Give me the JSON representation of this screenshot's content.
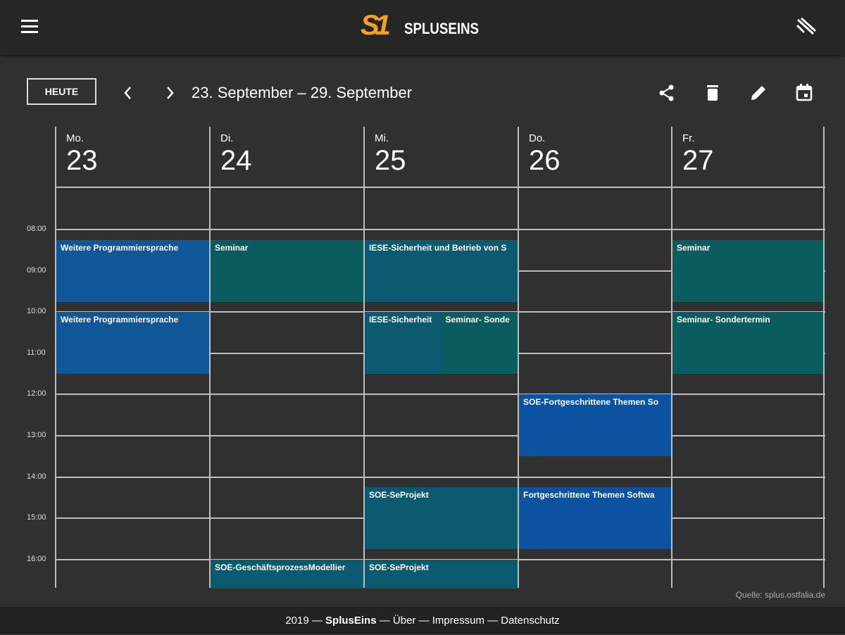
{
  "header": {
    "logo": "S1",
    "brand": "SPLUSEINS"
  },
  "toolbar": {
    "today_button": "HEUTE",
    "date_range": "23. September – 29. September"
  },
  "time_labels": [
    "08:00",
    "09:00",
    "10:00",
    "11:00",
    "12:00",
    "13:00",
    "14:00",
    "15:00",
    "16:00"
  ],
  "days": [
    {
      "weekday": "Mo.",
      "date": 23,
      "events": [
        {
          "title": "Weitere Programmiersprache"
        },
        {
          "title": "Weitere Programmiersprache"
        }
      ]
    },
    {
      "weekday": "Di.",
      "date": 24,
      "events": [
        {
          "title": "Seminar"
        },
        {
          "title": "SOE-GeschäftsprozessModellier"
        }
      ]
    },
    {
      "weekday": "Mi.",
      "date": 25,
      "events": [
        {
          "title": "IESE-Sicherheit und Betrieb von S"
        },
        {
          "title": "IESE-Sicherheit"
        },
        {
          "title": "Seminar- Sonde"
        },
        {
          "title": "SOE-SeProjekt"
        },
        {
          "title": "SOE-SeProjekt"
        }
      ]
    },
    {
      "weekday": "Do.",
      "date": 26,
      "events": [
        {
          "title": "SOE-Fortgeschrittene Themen So"
        },
        {
          "title": "Fortgeschrittene Themen Softwa"
        }
      ]
    },
    {
      "weekday": "Fr.",
      "date": 27,
      "events": [
        {
          "title": "Seminar"
        },
        {
          "title": "Seminar- Sondertermin"
        }
      ]
    }
  ],
  "source": "Quelle: splus.ostfalia.de",
  "footer": {
    "year": "2019",
    "separator": "—",
    "brand": "SplusEins",
    "links": [
      "Über",
      "Impressum",
      "Datenschutz"
    ]
  }
}
